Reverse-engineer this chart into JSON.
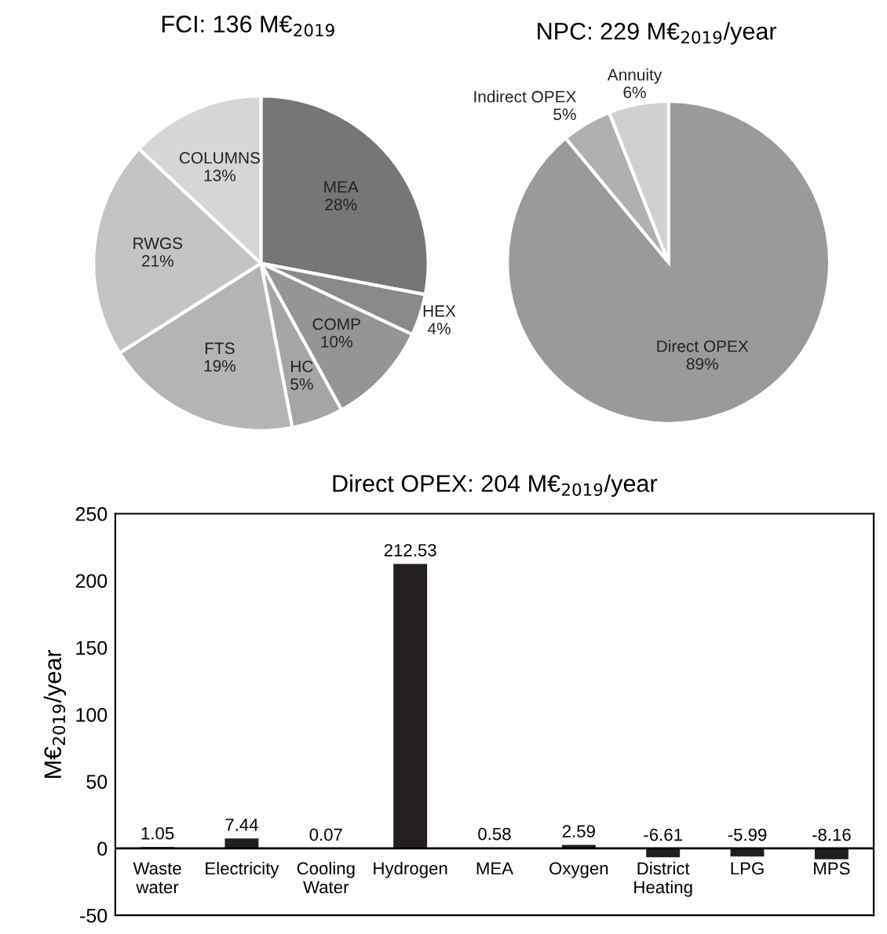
{
  "chart_data": [
    {
      "type": "pie",
      "title": "FCI: 136 M€$_{2019}$",
      "categories": [
        "MEA",
        "HEX",
        "COMP",
        "HC",
        "FTS",
        "RWGS",
        "COLUMNS"
      ],
      "values": [
        28,
        4,
        10,
        5,
        19,
        21,
        13
      ],
      "colors": [
        "#767676",
        "#8a8a8a",
        "#959595",
        "#a5a5a5",
        "#b4b4b4",
        "#c4c4c4",
        "#d6d6d6"
      ],
      "value_labels": [
        "28%",
        "4%",
        "10%",
        "5%",
        "19%",
        "21%",
        "13%"
      ]
    },
    {
      "type": "pie",
      "title": "NPC: 229 M€$_{2019}$/year",
      "categories": [
        "Direct OPEX",
        "Indirect OPEX",
        "Annuity"
      ],
      "values": [
        89,
        5,
        6
      ],
      "colors": [
        "#9a9a9a",
        "#b0b0b0",
        "#d0d0d0"
      ],
      "value_labels": [
        "89%",
        "5%",
        "6%"
      ]
    },
    {
      "type": "bar",
      "title": "Direct OPEX: 204 M€$_{2019}$/year",
      "ylabel": "M€$_{2019}$/year",
      "categories": [
        "Waste\nwater",
        "Electricity",
        "Cooling\nWater",
        "Hydrogen",
        "MEA",
        "Oxygen",
        "District\nHeating",
        "LPG",
        "MPS"
      ],
      "values": [
        1.05,
        7.44,
        0.07,
        212.53,
        0.58,
        2.59,
        -6.61,
        -5.99,
        -8.16
      ],
      "color": "#231f20",
      "data_labels": true,
      "ylim": [
        -50,
        250
      ],
      "yticks": [
        -50,
        0,
        50,
        100,
        150,
        200,
        250
      ],
      "grid": false
    }
  ]
}
